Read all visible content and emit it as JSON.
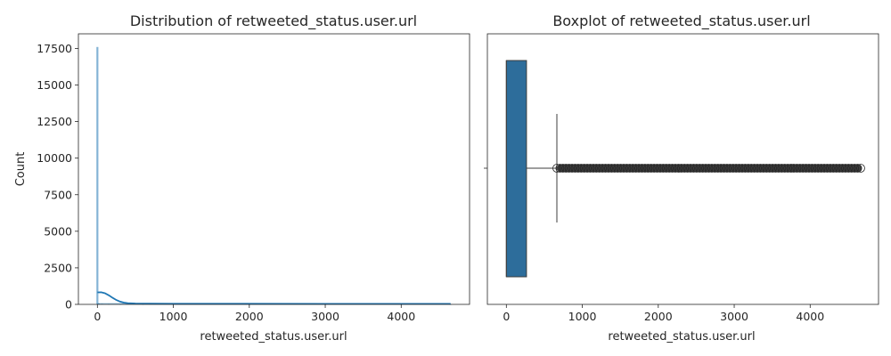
{
  "chart_data": [
    {
      "type": "histogram",
      "title": "Distribution of retweeted_status.user.url",
      "xlabel": "retweeted_status.user.url",
      "ylabel": "Count",
      "xlim": [
        -250,
        4900
      ],
      "ylim": [
        0,
        18500
      ],
      "xticks": [
        0,
        1000,
        2000,
        3000,
        4000
      ],
      "yticks": [
        0,
        2500,
        5000,
        7500,
        10000,
        12500,
        15000,
        17500
      ],
      "bar_color": "#1f77b4",
      "bars": [
        {
          "x": 0,
          "count": 17600
        },
        {
          "x": 20,
          "count": 60
        },
        {
          "x": 60,
          "count": 40
        },
        {
          "x": 150,
          "count": 25
        },
        {
          "x": 300,
          "count": 15
        },
        {
          "x": 600,
          "count": 10
        },
        {
          "x": 1000,
          "count": 8
        },
        {
          "x": 2000,
          "count": 6
        },
        {
          "x": 3000,
          "count": 5
        },
        {
          "x": 4000,
          "count": 4
        },
        {
          "x": 4650,
          "count": 3
        }
      ],
      "kde": {
        "x": [
          0,
          50,
          100,
          150,
          200,
          250,
          300,
          350,
          400,
          500,
          700,
          1000,
          2000,
          3000,
          4000,
          4650
        ],
        "y": [
          820,
          830,
          760,
          620,
          450,
          300,
          190,
          120,
          80,
          60,
          50,
          45,
          40,
          38,
          36,
          35
        ]
      }
    },
    {
      "type": "boxplot",
      "title": "Boxplot of retweeted_status.user.url",
      "xlabel": "retweeted_status.user.url",
      "xlim": [
        -250,
        4900
      ],
      "xticks": [
        0,
        1000,
        2000,
        3000,
        4000
      ],
      "box_color": "#2d6d9b",
      "min": 0,
      "q1": 0,
      "median": 0,
      "q3": 265,
      "whisker_low": 0,
      "whisker_high": 665,
      "outliers_range": [
        665,
        4680
      ]
    }
  ]
}
